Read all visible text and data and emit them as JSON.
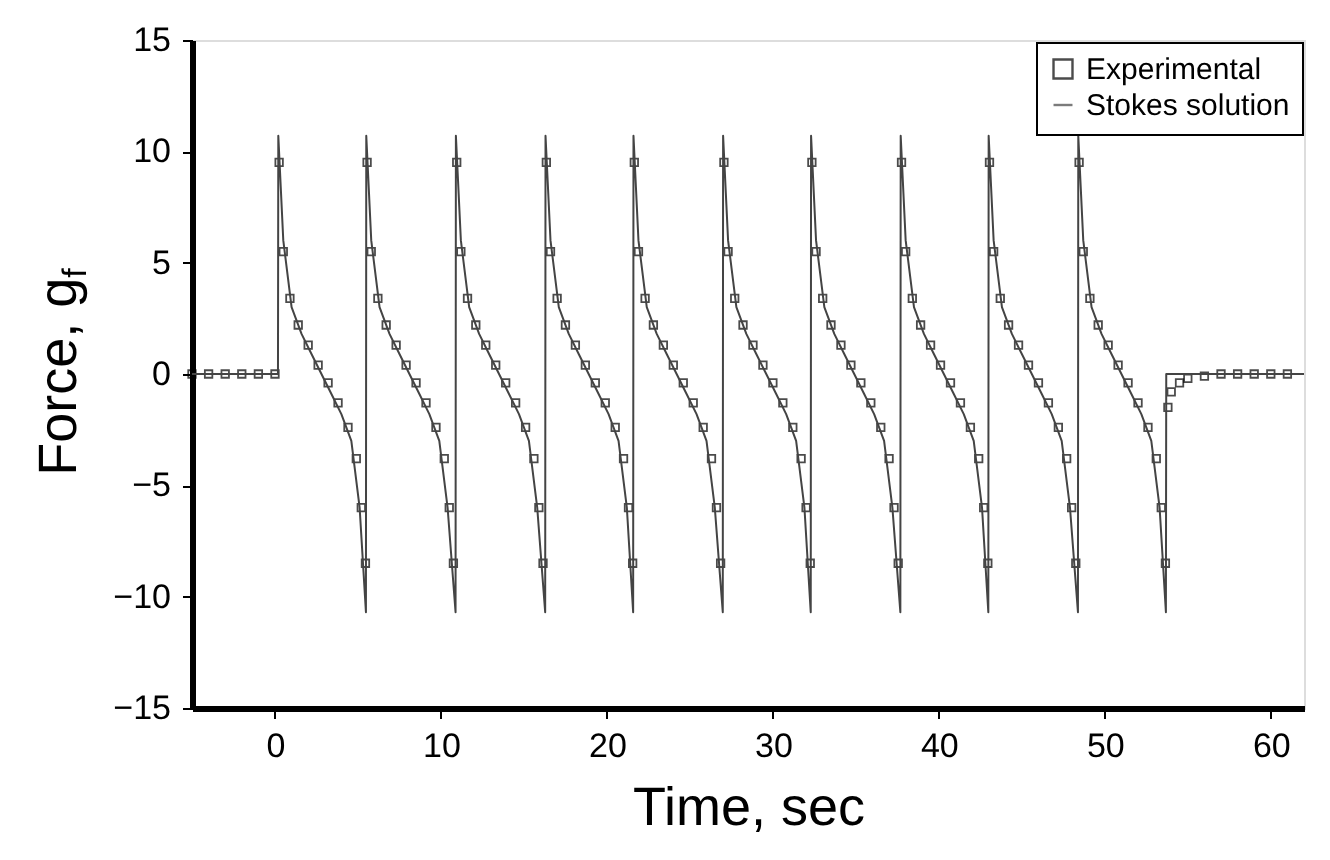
{
  "chart_data": {
    "type": "line",
    "xlabel": "Time, sec",
    "ylabel": "Force, g$_{f}$",
    "xlim": [
      -5,
      62
    ],
    "ylim": [
      -15,
      15
    ],
    "xticks": [
      0,
      10,
      20,
      30,
      40,
      50,
      60
    ],
    "yticks": [
      -15,
      -10,
      -5,
      0,
      5,
      10,
      15
    ],
    "grid": false,
    "legend": "top right",
    "series": [
      {
        "name": "Experimental",
        "type": "scatter",
        "marker": "square",
        "color": "#000000",
        "x": [
          -5,
          -4,
          -3,
          -2,
          -1,
          0,
          0.25,
          0.5,
          0.9,
          1.4,
          2.0,
          2.6,
          3.2,
          3.8,
          4.4,
          4.9,
          5.2,
          5.45,
          5.55,
          5.8,
          6.2,
          6.7,
          7.3,
          7.9,
          8.5,
          9.1,
          9.7,
          10.2,
          10.5,
          10.75,
          10.95,
          11.2,
          11.6,
          12.1,
          12.7,
          13.3,
          13.9,
          14.5,
          15.1,
          15.6,
          15.9,
          16.15,
          16.35,
          16.6,
          17.0,
          17.5,
          18.1,
          18.7,
          19.3,
          19.9,
          20.5,
          21.0,
          21.3,
          21.55,
          21.65,
          21.9,
          22.3,
          22.8,
          23.4,
          24.0,
          24.6,
          25.2,
          25.8,
          26.3,
          26.6,
          26.85,
          27.05,
          27.3,
          27.7,
          28.2,
          28.8,
          29.4,
          30.0,
          30.6,
          31.2,
          31.7,
          32.0,
          32.25,
          32.35,
          32.6,
          33.0,
          33.5,
          34.1,
          34.7,
          35.3,
          35.9,
          36.5,
          37.0,
          37.3,
          37.55,
          37.75,
          38.0,
          38.4,
          38.9,
          39.5,
          40.1,
          40.7,
          41.3,
          41.9,
          42.4,
          42.7,
          42.95,
          43.05,
          43.3,
          43.7,
          44.2,
          44.8,
          45.4,
          46.0,
          46.6,
          47.2,
          47.7,
          48.0,
          48.25,
          48.45,
          48.7,
          49.1,
          49.6,
          50.2,
          50.8,
          51.4,
          52.0,
          52.6,
          53.1,
          53.4,
          53.65,
          53.8,
          54.0,
          54.5,
          55,
          56,
          57,
          58,
          59,
          60,
          61
        ],
        "values": [
          0,
          0,
          0,
          0,
          0,
          0,
          9.5,
          5.5,
          3.4,
          2.2,
          1.3,
          0.4,
          -0.4,
          -1.3,
          -2.4,
          -3.8,
          -6,
          -8.5,
          9.5,
          5.5,
          3.4,
          2.2,
          1.3,
          0.4,
          -0.4,
          -1.3,
          -2.4,
          -3.8,
          -6,
          -8.5,
          9.5,
          5.5,
          3.4,
          2.2,
          1.3,
          0.4,
          -0.4,
          -1.3,
          -2.4,
          -3.8,
          -6,
          -8.5,
          9.5,
          5.5,
          3.4,
          2.2,
          1.3,
          0.4,
          -0.4,
          -1.3,
          -2.4,
          -3.8,
          -6,
          -8.5,
          9.5,
          5.5,
          3.4,
          2.2,
          1.3,
          0.4,
          -0.4,
          -1.3,
          -2.4,
          -3.8,
          -6,
          -8.5,
          9.5,
          5.5,
          3.4,
          2.2,
          1.3,
          0.4,
          -0.4,
          -1.3,
          -2.4,
          -3.8,
          -6,
          -8.5,
          9.5,
          5.5,
          3.4,
          2.2,
          1.3,
          0.4,
          -0.4,
          -1.3,
          -2.4,
          -3.8,
          -6,
          -8.5,
          9.5,
          5.5,
          3.4,
          2.2,
          1.3,
          0.4,
          -0.4,
          -1.3,
          -2.4,
          -3.8,
          -6,
          -8.5,
          9.5,
          5.5,
          3.4,
          2.2,
          1.3,
          0.4,
          -0.4,
          -1.3,
          -2.4,
          -3.8,
          -6,
          -8.5,
          9.5,
          5.5,
          3.4,
          2.2,
          1.3,
          0.4,
          -0.4,
          -1.3,
          -2.4,
          -3.8,
          -6,
          -8.5,
          -1.5,
          -0.8,
          -0.4,
          -0.2,
          -0.1,
          0,
          0,
          0,
          0,
          0
        ]
      },
      {
        "name": "Stokes solution",
        "type": "line",
        "color": "#444444",
        "x": [
          -5,
          0.18,
          0.2,
          0.5,
          1.0,
          1.6,
          2.2,
          2.8,
          3.4,
          4.0,
          4.6,
          5.1,
          5.48,
          5.5,
          5.8,
          6.3,
          6.9,
          7.5,
          8.1,
          8.7,
          9.3,
          9.9,
          10.4,
          10.88,
          10.9,
          11.2,
          11.7,
          12.3,
          12.9,
          13.5,
          14.1,
          14.7,
          15.3,
          15.8,
          16.28,
          16.3,
          16.6,
          17.1,
          17.7,
          18.3,
          18.9,
          19.5,
          20.1,
          20.7,
          21.2,
          21.58,
          21.6,
          21.9,
          22.4,
          23.0,
          23.6,
          24.2,
          24.8,
          25.4,
          26.0,
          26.5,
          26.98,
          27.0,
          27.3,
          27.8,
          28.4,
          29.0,
          29.6,
          30.2,
          30.8,
          31.4,
          31.9,
          32.28,
          32.3,
          32.6,
          33.1,
          33.7,
          34.3,
          34.9,
          35.5,
          36.1,
          36.7,
          37.2,
          37.68,
          37.7,
          38.0,
          38.5,
          39.1,
          39.7,
          40.3,
          40.9,
          41.5,
          42.1,
          42.6,
          42.98,
          43.0,
          43.3,
          43.8,
          44.4,
          45.0,
          45.6,
          46.2,
          46.8,
          47.4,
          47.9,
          48.38,
          48.4,
          48.7,
          49.2,
          49.8,
          50.4,
          51.0,
          51.6,
          52.2,
          52.8,
          53.3,
          53.68,
          53.7,
          62
        ],
        "values": [
          0,
          0,
          10.7,
          6,
          3,
          1.8,
          0.9,
          0,
          -0.9,
          -1.8,
          -3,
          -6,
          -10.7,
          10.7,
          6,
          3,
          1.8,
          0.9,
          0,
          -0.9,
          -1.8,
          -3,
          -6,
          -10.7,
          10.7,
          6,
          3,
          1.8,
          0.9,
          0,
          -0.9,
          -1.8,
          -3,
          -6,
          -10.7,
          10.7,
          6,
          3,
          1.8,
          0.9,
          0,
          -0.9,
          -1.8,
          -3,
          -6,
          -10.7,
          10.7,
          6,
          3,
          1.8,
          0.9,
          0,
          -0.9,
          -1.8,
          -3,
          -6,
          -10.7,
          10.7,
          6,
          3,
          1.8,
          0.9,
          0,
          -0.9,
          -1.8,
          -3,
          -6,
          -10.7,
          10.7,
          6,
          3,
          1.8,
          0.9,
          0,
          -0.9,
          -1.8,
          -3,
          -6,
          -10.7,
          10.7,
          6,
          3,
          1.8,
          0.9,
          0,
          -0.9,
          -1.8,
          -3,
          -6,
          -10.7,
          10.7,
          6,
          3,
          1.8,
          0.9,
          0,
          -0.9,
          -1.8,
          -3,
          -6,
          -10.7,
          10.7,
          6,
          3,
          1.8,
          0.9,
          0,
          -0.9,
          -1.8,
          -3,
          -6,
          -10.7,
          0,
          0
        ]
      }
    ]
  }
}
